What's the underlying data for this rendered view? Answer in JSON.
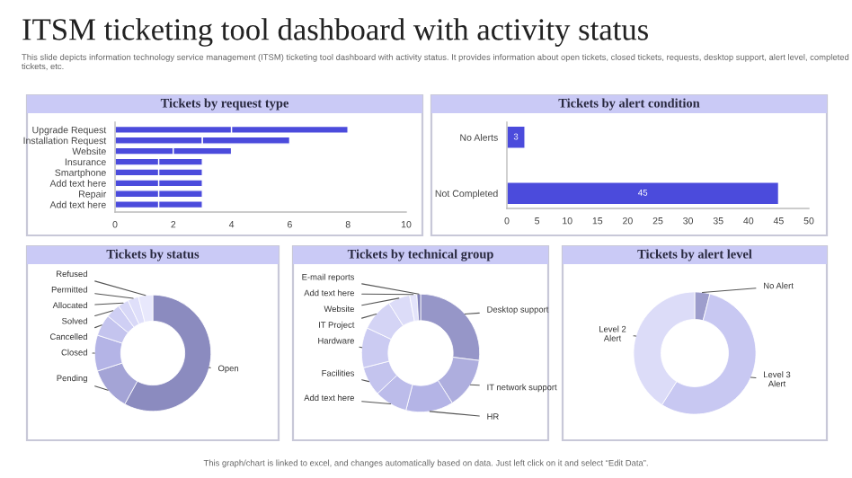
{
  "chart_data": [
    {
      "type": "bar",
      "orientation": "horizontal",
      "stacked": true,
      "title": "Tickets by request type",
      "annotations": [
        "ITSM ticketing tool dashboard with activity status",
        "This slide depicts information technology service management (ITSM) ticketing tool dashboard with activity status. It provides information about open tickets, closed tickets, requests, desktop support, alert level, completed tickets, etc.",
        "This graph/chart is linked to excel, and changes automatically based on data. Just left click on it and select “Edit Data”."
      ],
      "categories": [
        "Upgrade Request",
        "Installation Request",
        "Website",
        "Insurance",
        "Smartphone",
        "Add text here",
        "Repair",
        "Add text here"
      ],
      "series": [
        {
          "color": "#4b4bdc",
          "values": [
            4,
            3,
            2,
            1.5,
            1.5,
            1.5,
            1.5,
            1.5
          ]
        },
        {
          "color": "#4b4bdc",
          "values": [
            4,
            3,
            2,
            1.5,
            1.5,
            1.5,
            1.5,
            1.5
          ]
        }
      ],
      "xlim": [
        0,
        10
      ],
      "xticks": [
        0,
        2,
        4,
        6,
        8,
        10
      ]
    },
    {
      "type": "bar",
      "orientation": "horizontal",
      "title": "Tickets by alert condition",
      "categories": [
        "No Alerts",
        "Not Completed"
      ],
      "values": [
        3,
        45
      ],
      "color": "#4b4bdc",
      "data_labels": true,
      "xlim": [
        0,
        50
      ],
      "xticks": [
        0,
        5,
        10,
        15,
        20,
        25,
        30,
        35,
        40,
        45,
        50
      ]
    },
    {
      "type": "donut",
      "title": "Tickets by status",
      "categories": [
        "Open",
        "Pending",
        "Closed",
        "Cancelled",
        "Solved",
        "Allocated",
        "Permitted",
        "Refused"
      ],
      "values": [
        58,
        12,
        10,
        6,
        4,
        3,
        3,
        4
      ],
      "colors": [
        "#8b8bbf",
        "#a4a4d6",
        "#b4b4e6",
        "#c4c4ee",
        "#cfcff4",
        "#d8d8f7",
        "#dfdffa",
        "#e8e8fc"
      ]
    },
    {
      "type": "donut",
      "title": "Tickets by technical group",
      "categories": [
        "Desktop support",
        "IT network support",
        "HR",
        "Add text here",
        "Facilities",
        "Hardware",
        "IT Project",
        "Website",
        "Add text here",
        "E-mail reports"
      ],
      "values": [
        27,
        14,
        13,
        9,
        8,
        11,
        9,
        6,
        2,
        1
      ],
      "colors": [
        "#9696c8",
        "#aeaede",
        "#b4b4e6",
        "#bcbcea",
        "#c4c4ee",
        "#cbcbf2",
        "#d4d4f5",
        "#dcdcf8",
        "#e4e4fb",
        "#8080b8"
      ]
    },
    {
      "type": "donut",
      "title": "Tickets by alert level",
      "categories": [
        "No Alert",
        "Level 3\nAlert",
        "Level 2\nAlert"
      ],
      "values": [
        4,
        55,
        41
      ],
      "colors": [
        "#9d9dcc",
        "#c8c8f2",
        "#dcdcf8"
      ]
    }
  ]
}
